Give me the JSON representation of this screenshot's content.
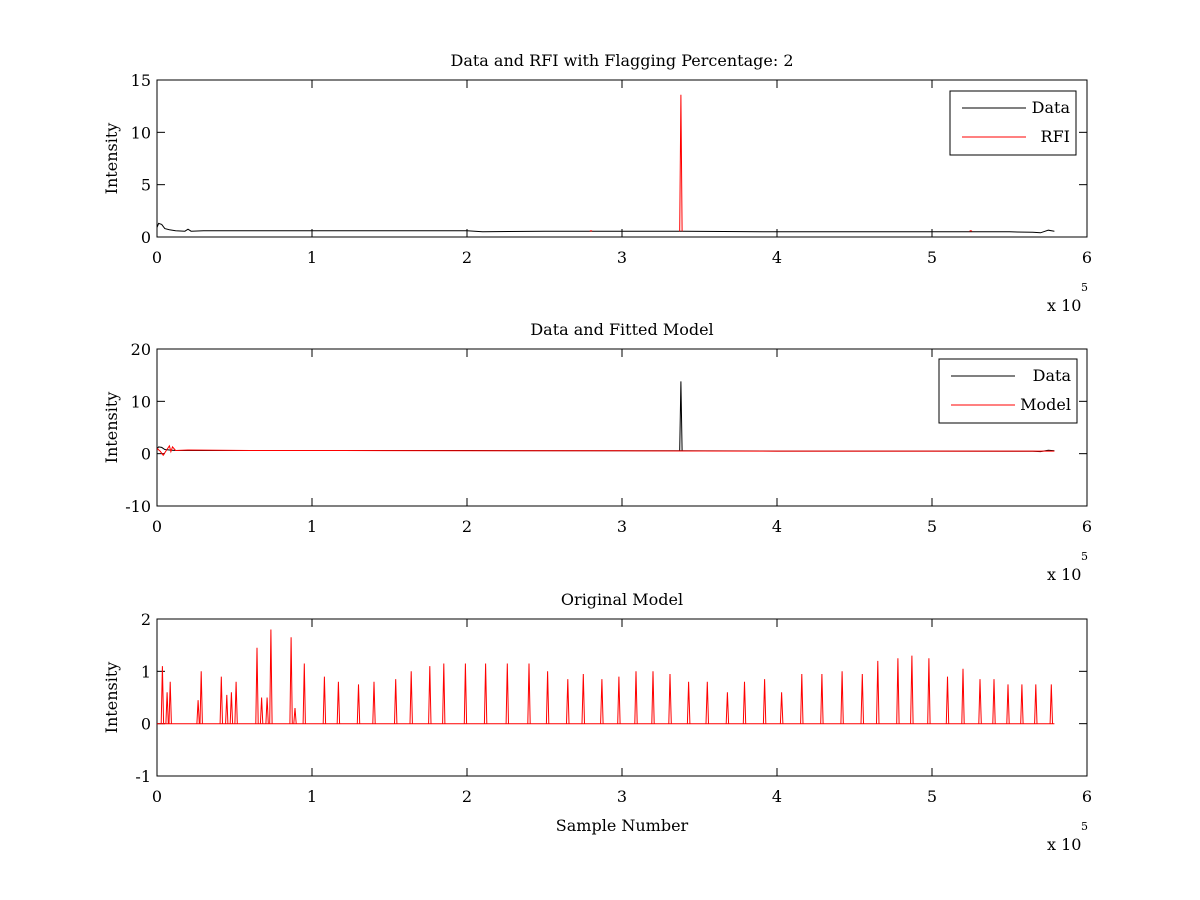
{
  "chart_data": [
    {
      "type": "line",
      "title": "Data and RFI with Flagging Percentage: 2",
      "xlabel": "",
      "ylabel": "Intensity",
      "xlim": [
        0,
        600000
      ],
      "ylim": [
        0,
        15
      ],
      "xticks": [
        0,
        1,
        2,
        3,
        4,
        5,
        6
      ],
      "yticks": [
        0,
        5,
        10,
        15
      ],
      "x_multiplier": {
        "base": "x 10",
        "power": "5"
      },
      "grid": false,
      "legend_position": "top-right",
      "legend": [
        "Data",
        "RFI"
      ],
      "series": [
        {
          "name": "Data",
          "color": "#000000",
          "points": [
            [
              0,
              0.9
            ],
            [
              1000,
              1.3
            ],
            [
              3000,
              1.2
            ],
            [
              5000,
              0.8
            ],
            [
              8000,
              0.7
            ],
            [
              12000,
              0.6
            ],
            [
              18000,
              0.55
            ],
            [
              20000,
              0.75
            ],
            [
              22000,
              0.55
            ],
            [
              30000,
              0.6
            ],
            [
              60000,
              0.6
            ],
            [
              100000,
              0.6
            ],
            [
              150000,
              0.6
            ],
            [
              200000,
              0.6
            ],
            [
              210000,
              0.5
            ],
            [
              250000,
              0.55
            ],
            [
              300000,
              0.55
            ],
            [
              337000,
              0.55
            ],
            [
              340000,
              0.55
            ],
            [
              400000,
              0.5
            ],
            [
              450000,
              0.5
            ],
            [
              500000,
              0.5
            ],
            [
              550000,
              0.5
            ],
            [
              565000,
              0.45
            ],
            [
              570000,
              0.4
            ],
            [
              575000,
              0.65
            ],
            [
              579000,
              0.55
            ]
          ],
          "spikes": []
        },
        {
          "name": "RFI",
          "color": "#ff0000",
          "points": [],
          "spikes": [
            [
              338000,
              13.6
            ],
            [
              280000,
              0.6
            ],
            [
              525000,
              0.6
            ]
          ]
        }
      ]
    },
    {
      "type": "line",
      "title": "Data and Fitted Model",
      "xlabel": "",
      "ylabel": "Intensity",
      "xlim": [
        0,
        600000
      ],
      "ylim": [
        -10,
        20
      ],
      "xticks": [
        0,
        1,
        2,
        3,
        4,
        5,
        6
      ],
      "yticks": [
        -10,
        0,
        10,
        20
      ],
      "x_multiplier": {
        "base": "x 10",
        "power": "5"
      },
      "grid": false,
      "legend_position": "top-right",
      "legend": [
        "Data",
        "Model"
      ],
      "series": [
        {
          "name": "Data",
          "color": "#000000",
          "points": [
            [
              0,
              0.9
            ],
            [
              1000,
              1.3
            ],
            [
              3000,
              1.2
            ],
            [
              5000,
              0.8
            ],
            [
              8000,
              0.7
            ],
            [
              12000,
              0.6
            ],
            [
              30000,
              0.6
            ],
            [
              100000,
              0.6
            ],
            [
              200000,
              0.6
            ],
            [
              300000,
              0.55
            ],
            [
              337000,
              0.55
            ],
            [
              400000,
              0.5
            ],
            [
              500000,
              0.5
            ],
            [
              565000,
              0.45
            ],
            [
              570000,
              0.4
            ],
            [
              575000,
              0.65
            ],
            [
              579000,
              0.55
            ]
          ],
          "spikes": [
            [
              338000,
              13.8
            ]
          ]
        },
        {
          "name": "Model",
          "color": "#ff0000",
          "points": [
            [
              0,
              1.0
            ],
            [
              2000,
              0.5
            ],
            [
              4000,
              -0.3
            ],
            [
              6000,
              0.6
            ],
            [
              8000,
              1.5
            ],
            [
              9000,
              0.4
            ],
            [
              10000,
              1.3
            ],
            [
              12000,
              0.6
            ],
            [
              20000,
              0.7
            ],
            [
              60000,
              0.6
            ],
            [
              120000,
              0.6
            ],
            [
              200000,
              0.55
            ],
            [
              300000,
              0.55
            ],
            [
              400000,
              0.5
            ],
            [
              500000,
              0.5
            ],
            [
              570000,
              0.5
            ],
            [
              579000,
              0.5
            ]
          ],
          "spikes": []
        }
      ]
    },
    {
      "type": "line",
      "title": "Original Model",
      "xlabel": "Sample Number",
      "ylabel": "Intensity",
      "xlim": [
        0,
        600000
      ],
      "ylim": [
        -1,
        2
      ],
      "xticks": [
        0,
        1,
        2,
        3,
        4,
        5,
        6
      ],
      "yticks": [
        -1,
        0,
        1,
        2
      ],
      "x_multiplier": {
        "base": "x 10",
        "power": "5"
      },
      "grid": false,
      "legend_position": "none",
      "legend": [],
      "series": [
        {
          "name": "",
          "color": "#ff0000",
          "points": [
            [
              0,
              0
            ],
            [
              579000,
              0
            ]
          ],
          "spikes": [
            [
              3500,
              1.1
            ],
            [
              6500,
              0.6
            ],
            [
              8500,
              0.8
            ],
            [
              26500,
              0.45
            ],
            [
              28500,
              1.0
            ],
            [
              41500,
              0.9
            ],
            [
              45000,
              0.55
            ],
            [
              48000,
              0.6
            ],
            [
              51000,
              0.8
            ],
            [
              64500,
              1.45
            ],
            [
              67500,
              0.5
            ],
            [
              71000,
              0.5
            ],
            [
              73500,
              1.8
            ],
            [
              86500,
              1.65
            ],
            [
              89000,
              0.3
            ],
            [
              95000,
              1.15
            ],
            [
              108000,
              0.9
            ],
            [
              117000,
              0.8
            ],
            [
              130000,
              0.75
            ],
            [
              140000,
              0.8
            ],
            [
              154000,
              0.85
            ],
            [
              164000,
              1.0
            ],
            [
              176000,
              1.1
            ],
            [
              185000,
              1.15
            ],
            [
              199000,
              1.15
            ],
            [
              212000,
              1.15
            ],
            [
              226000,
              1.15
            ],
            [
              240000,
              1.15
            ],
            [
              252000,
              1.0
            ],
            [
              265000,
              0.85
            ],
            [
              275000,
              0.95
            ],
            [
              287000,
              0.85
            ],
            [
              298000,
              0.9
            ],
            [
              309000,
              1.0
            ],
            [
              320000,
              1.0
            ],
            [
              331000,
              0.95
            ],
            [
              343000,
              0.8
            ],
            [
              355000,
              0.8
            ],
            [
              368000,
              0.6
            ],
            [
              379000,
              0.8
            ],
            [
              392000,
              0.85
            ],
            [
              403000,
              0.6
            ],
            [
              416000,
              0.95
            ],
            [
              429000,
              0.95
            ],
            [
              442000,
              1.0
            ],
            [
              455000,
              0.95
            ],
            [
              465000,
              1.2
            ],
            [
              478000,
              1.25
            ],
            [
              487000,
              1.3
            ],
            [
              498000,
              1.25
            ],
            [
              510000,
              0.9
            ],
            [
              520000,
              1.05
            ],
            [
              531000,
              0.85
            ],
            [
              540000,
              0.85
            ],
            [
              549000,
              0.75
            ],
            [
              558000,
              0.75
            ],
            [
              567000,
              0.75
            ],
            [
              577000,
              0.75
            ]
          ]
        }
      ]
    }
  ]
}
